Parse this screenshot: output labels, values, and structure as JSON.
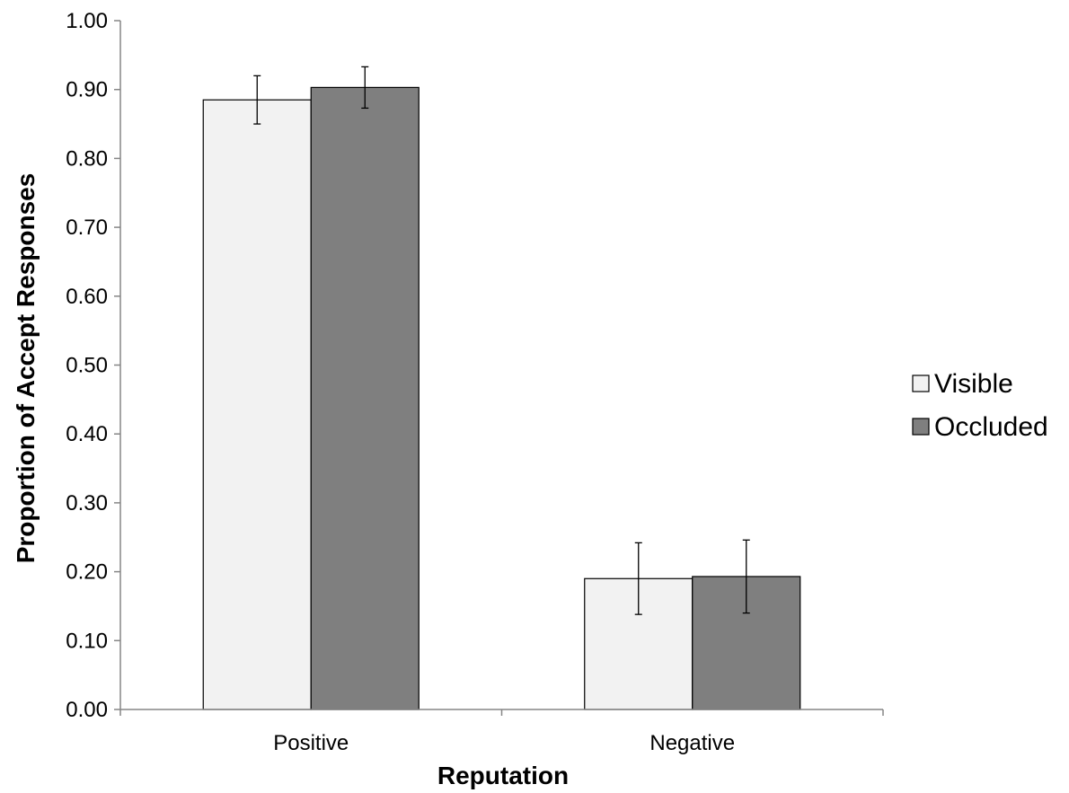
{
  "chart_data": {
    "type": "bar",
    "title": "",
    "xlabel": "Reputation",
    "ylabel": "Proportion of Accept Responses",
    "categories": [
      "Positive",
      "Negative"
    ],
    "ylim": [
      0,
      1
    ],
    "yticks": [
      "0.00",
      "0.10",
      "0.20",
      "0.30",
      "0.40",
      "0.50",
      "0.60",
      "0.70",
      "0.80",
      "0.90",
      "1.00"
    ],
    "grid": false,
    "legend_position": "right",
    "series": [
      {
        "name": "Visible",
        "color": "#f2f2f2",
        "values": [
          0.885,
          0.19
        ],
        "error": [
          0.035,
          0.052
        ]
      },
      {
        "name": "Occluded",
        "color": "#7f7f7f",
        "values": [
          0.903,
          0.193
        ],
        "error": [
          0.03,
          0.053
        ]
      }
    ]
  }
}
